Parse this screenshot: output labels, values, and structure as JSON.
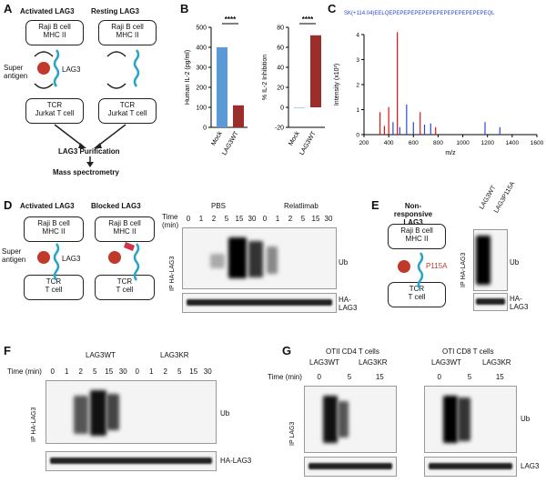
{
  "panels": {
    "A": {
      "label": "A",
      "left_title": "Activated LAG3",
      "right_title": "Resting LAG3",
      "raji": "Raji B cell",
      "mhc": "MHC II",
      "super_antigen": "Super antigen",
      "lag3": "LAG3",
      "tcr": "TCR",
      "jurkat": "Jurkat T cell",
      "purification": "LAG3 Purification",
      "mass_spec": "Mass spectrometry"
    },
    "B": {
      "label": "B",
      "chart_left": {
        "type": "bar",
        "ylabel": "Human IL-2 (pg/ml)",
        "categories": [
          "Mock",
          "LAG3WT"
        ],
        "values": [
          400,
          110
        ],
        "yticks": [
          "0",
          "100",
          "200",
          "300",
          "400",
          "500"
        ],
        "ylim": [
          0,
          500
        ],
        "significance": "****"
      },
      "chart_right": {
        "type": "bar",
        "ylabel": "% IL-2 Inhibition",
        "categories": [
          "Mock",
          "LAG3WT"
        ],
        "values": [
          0,
          72
        ],
        "yticks": [
          "-20",
          "0",
          "20",
          "40",
          "60",
          "80"
        ],
        "ylim": [
          -20,
          80
        ],
        "significance": "****"
      }
    },
    "C": {
      "label": "C",
      "ylabel": "Intensity (x10³)",
      "xlabel": "m/z",
      "xticks": [
        "200",
        "400",
        "600",
        "800",
        "1000",
        "1200",
        "1400",
        "1600"
      ],
      "yticks": [
        "0",
        "1",
        "2",
        "3",
        "4"
      ],
      "sequence": "SK(+114.04)EELQEPEPEPEPEPEPEPEPEPEPEPEPEPEQL"
    },
    "D": {
      "label": "D",
      "left_title": "Activated LAG3",
      "right_title": "Blocked LAG3",
      "raji": "Raji B cell",
      "mhc": "MHC II",
      "super_antigen": "Super antigen",
      "lag3": "LAG3",
      "tcr": "TCR",
      "tcell": "T cell",
      "group1": "PBS",
      "group2": "Relatlimab",
      "time_label": "Time (min)",
      "times": [
        "0",
        "1",
        "2",
        "5",
        "15",
        "30",
        "0",
        "1",
        "2",
        "5",
        "15",
        "30"
      ],
      "ip": "IP HA-LAG3",
      "ub": "Ub",
      "ha": "HA-LAG3"
    },
    "E": {
      "label": "E",
      "title": "Non-responsive LAG3",
      "raji": "Raji B cell",
      "mhc": "MHC II",
      "mutation": "P115A",
      "tcr": "TCR",
      "tcell": "T cell",
      "lanes": [
        "LAG3WT",
        "LAG3P115A"
      ],
      "ip": "IP HA-LAG3",
      "ub": "Ub",
      "ha": "HA-LAG3"
    },
    "F": {
      "label": "F",
      "group1": "LAG3WT",
      "group2": "LAG3KR",
      "time_label": "Time (min)",
      "times": [
        "0",
        "1",
        "2",
        "5",
        "15",
        "30",
        "0",
        "1",
        "2",
        "5",
        "15",
        "30"
      ],
      "ip": "IP HA-LAG3",
      "ub": "Ub",
      "ha": "HA-LAG3"
    },
    "G": {
      "label": "G",
      "left_title": "OTII CD4 T cells",
      "right_title": "OTI CD8 T cells",
      "group1": "LAG3WT",
      "group2": "LAG3KR",
      "time_label": "Time (min)",
      "times": [
        "0",
        "5",
        "15",
        "0",
        "5",
        "15"
      ],
      "ip": "IP LAG3",
      "ub": "Ub",
      "lag3": "LAG3"
    }
  }
}
